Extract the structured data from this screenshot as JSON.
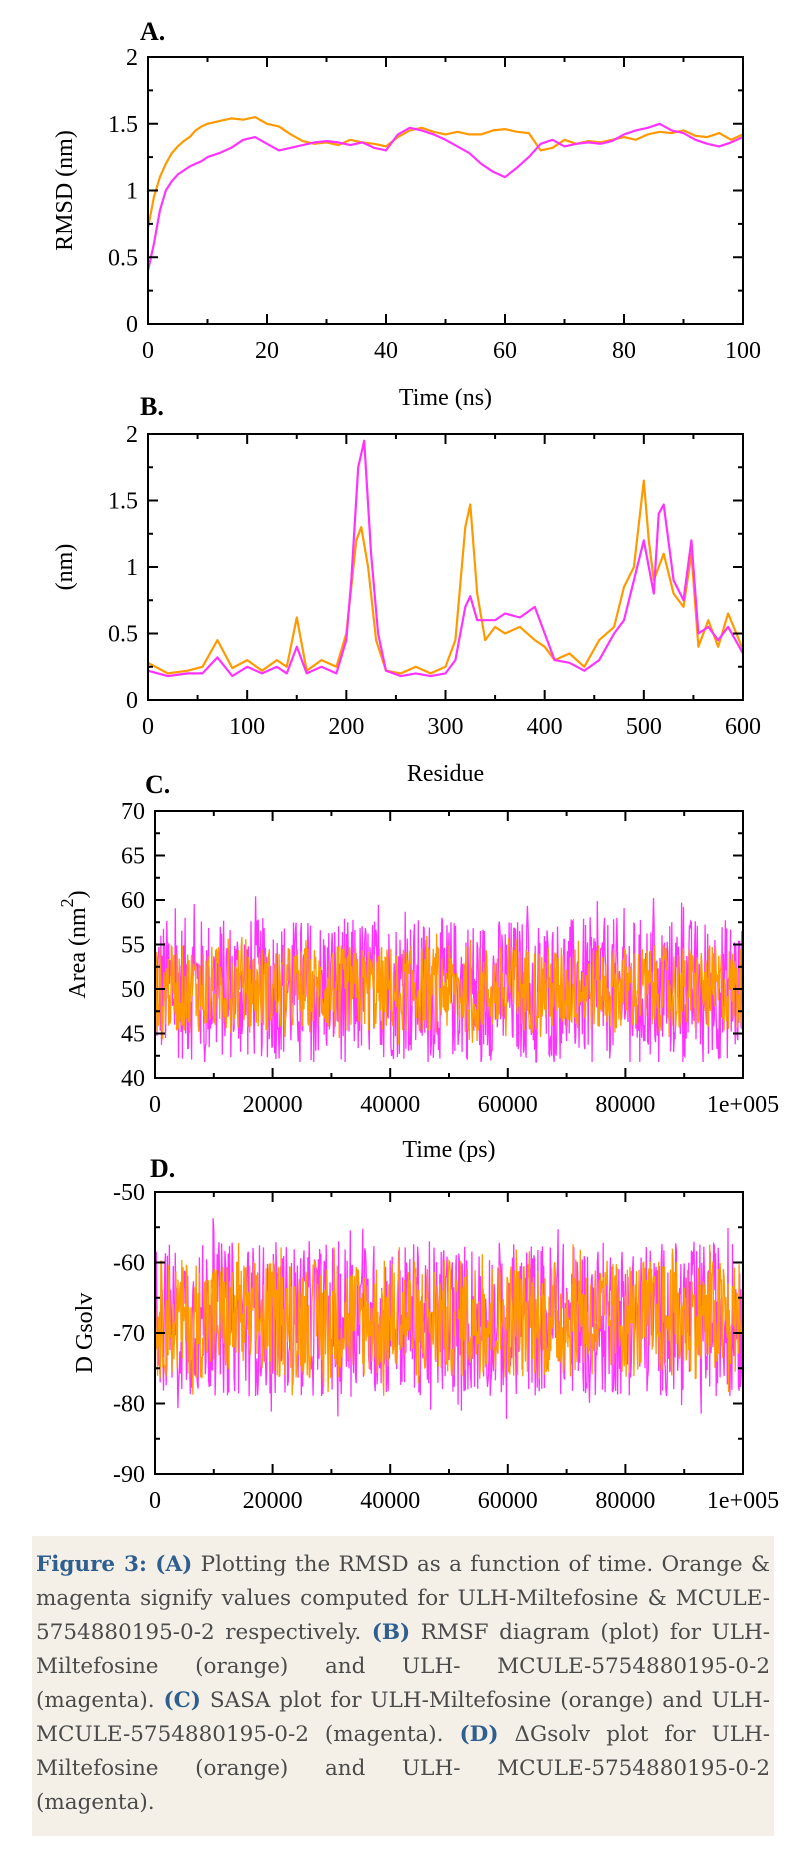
{
  "colors": {
    "orange": "#ff9900",
    "magenta": "#ff33ff",
    "axis": "#000000",
    "caption_bold": "#2e5f8e"
  },
  "chart_data": [
    {
      "panel": "A.",
      "type": "line",
      "xlabel": "Time (ns)",
      "ylabel": "RMSD (nm)",
      "xlim": [
        0,
        100
      ],
      "ylim": [
        0,
        2
      ],
      "xticks": [
        "0",
        "20",
        "40",
        "60",
        "80",
        "100"
      ],
      "yticks": [
        "0",
        "0.5",
        "1",
        "1.5",
        "2"
      ],
      "series": [
        {
          "color": "orange",
          "x": [
            0,
            1,
            2,
            3,
            4,
            5,
            6,
            7,
            8,
            9,
            10,
            12,
            14,
            16,
            18,
            20,
            22,
            24,
            26,
            28,
            30,
            32,
            34,
            36,
            38,
            40,
            42,
            44,
            46,
            48,
            50,
            52,
            54,
            56,
            58,
            60,
            62,
            64,
            66,
            68,
            70,
            72,
            74,
            76,
            78,
            80,
            82,
            84,
            86,
            88,
            90,
            92,
            94,
            96,
            98,
            100
          ],
          "y": [
            0.72,
            0.95,
            1.1,
            1.2,
            1.28,
            1.33,
            1.37,
            1.4,
            1.45,
            1.48,
            1.5,
            1.52,
            1.54,
            1.53,
            1.55,
            1.5,
            1.48,
            1.42,
            1.37,
            1.35,
            1.36,
            1.34,
            1.38,
            1.36,
            1.35,
            1.33,
            1.4,
            1.45,
            1.47,
            1.44,
            1.42,
            1.44,
            1.42,
            1.42,
            1.45,
            1.46,
            1.44,
            1.43,
            1.3,
            1.32,
            1.38,
            1.35,
            1.37,
            1.36,
            1.38,
            1.4,
            1.38,
            1.42,
            1.44,
            1.43,
            1.45,
            1.41,
            1.4,
            1.43,
            1.38,
            1.42
          ]
        },
        {
          "color": "magenta",
          "x": [
            0,
            1,
            2,
            3,
            4,
            5,
            6,
            7,
            8,
            9,
            10,
            12,
            14,
            16,
            18,
            20,
            22,
            24,
            26,
            28,
            30,
            32,
            34,
            36,
            38,
            40,
            42,
            44,
            46,
            48,
            50,
            52,
            54,
            56,
            58,
            60,
            62,
            64,
            66,
            68,
            70,
            72,
            74,
            76,
            78,
            80,
            82,
            84,
            86,
            88,
            90,
            92,
            94,
            96,
            98,
            100
          ],
          "y": [
            0.4,
            0.6,
            0.85,
            1.0,
            1.07,
            1.12,
            1.15,
            1.18,
            1.2,
            1.22,
            1.25,
            1.28,
            1.32,
            1.38,
            1.4,
            1.35,
            1.3,
            1.32,
            1.34,
            1.36,
            1.37,
            1.36,
            1.34,
            1.36,
            1.32,
            1.3,
            1.42,
            1.47,
            1.45,
            1.42,
            1.38,
            1.33,
            1.28,
            1.2,
            1.14,
            1.1,
            1.17,
            1.25,
            1.35,
            1.38,
            1.33,
            1.35,
            1.36,
            1.35,
            1.37,
            1.42,
            1.45,
            1.47,
            1.5,
            1.45,
            1.43,
            1.38,
            1.35,
            1.33,
            1.36,
            1.4
          ]
        }
      ]
    },
    {
      "panel": "B.",
      "type": "line",
      "xlabel": "Residue",
      "ylabel": "(nm)",
      "xlim": [
        0,
        600
      ],
      "ylim": [
        0,
        2
      ],
      "xticks": [
        "0",
        "100",
        "200",
        "300",
        "400",
        "500",
        "600"
      ],
      "yticks": [
        "0",
        "0.5",
        "1",
        "1.5",
        "2"
      ],
      "series": [
        {
          "color": "orange",
          "x": [
            0,
            20,
            40,
            55,
            70,
            85,
            100,
            115,
            130,
            140,
            150,
            160,
            175,
            190,
            200,
            210,
            215,
            222,
            230,
            240,
            255,
            270,
            285,
            300,
            310,
            320,
            325,
            332,
            340,
            350,
            360,
            375,
            390,
            400,
            410,
            425,
            440,
            455,
            470,
            480,
            490,
            500,
            505,
            510,
            520,
            530,
            540,
            548,
            555,
            565,
            575,
            585,
            600
          ],
          "y": [
            0.28,
            0.2,
            0.22,
            0.25,
            0.45,
            0.24,
            0.3,
            0.22,
            0.3,
            0.25,
            0.62,
            0.22,
            0.3,
            0.25,
            0.5,
            1.2,
            1.3,
            1.0,
            0.45,
            0.22,
            0.2,
            0.25,
            0.2,
            0.25,
            0.45,
            1.3,
            1.47,
            0.8,
            0.45,
            0.55,
            0.5,
            0.55,
            0.45,
            0.4,
            0.3,
            0.35,
            0.25,
            0.45,
            0.55,
            0.85,
            1.0,
            1.65,
            1.2,
            0.9,
            1.1,
            0.8,
            0.7,
            1.1,
            0.4,
            0.6,
            0.4,
            0.65,
            0.38
          ]
        },
        {
          "color": "magenta",
          "x": [
            0,
            20,
            40,
            55,
            70,
            85,
            100,
            115,
            130,
            140,
            150,
            160,
            175,
            190,
            200,
            205,
            212,
            218,
            225,
            232,
            240,
            255,
            270,
            285,
            300,
            310,
            320,
            325,
            332,
            340,
            350,
            360,
            375,
            390,
            400,
            410,
            425,
            440,
            455,
            470,
            480,
            490,
            500,
            505,
            510,
            515,
            520,
            530,
            540,
            548,
            555,
            565,
            575,
            585,
            600
          ],
          "y": [
            0.22,
            0.18,
            0.2,
            0.2,
            0.32,
            0.18,
            0.25,
            0.2,
            0.25,
            0.2,
            0.4,
            0.2,
            0.25,
            0.2,
            0.45,
            0.9,
            1.75,
            1.95,
            1.1,
            0.5,
            0.22,
            0.18,
            0.2,
            0.18,
            0.2,
            0.3,
            0.7,
            0.78,
            0.6,
            0.6,
            0.6,
            0.65,
            0.62,
            0.7,
            0.5,
            0.3,
            0.28,
            0.22,
            0.3,
            0.5,
            0.6,
            0.9,
            1.2,
            1.0,
            0.8,
            1.4,
            1.47,
            0.9,
            0.75,
            1.2,
            0.5,
            0.55,
            0.45,
            0.55,
            0.35
          ]
        }
      ]
    },
    {
      "panel": "C.",
      "type": "line",
      "xlabel": "Time (ps)",
      "ylabel": "Area (nm",
      "ylabel_superscript": "2",
      "ylabel_suffix": ")",
      "xlim": [
        0,
        100000
      ],
      "ylim": [
        40,
        70
      ],
      "xticks": [
        "0",
        "20000",
        "40000",
        "60000",
        "80000",
        "1e+005"
      ],
      "yticks": [
        "40",
        "45",
        "50",
        "55",
        "60",
        "65",
        "70"
      ],
      "series": [
        {
          "color": "magenta",
          "mean": 50,
          "spread": 9.5,
          "peak_max": 61.2,
          "peak_min": 41.8
        },
        {
          "color": "orange",
          "mean": 50,
          "spread": 5.8,
          "peak_max": 56.8,
          "peak_min": 42.5
        }
      ]
    },
    {
      "panel": "D.",
      "type": "line",
      "xlabel": "Time (ps)",
      "ylabel": "D Gsolv",
      "xlim": [
        0,
        100000
      ],
      "ylim": [
        -90,
        -50
      ],
      "xticks": [
        "0",
        "20000",
        "40000",
        "60000",
        "80000",
        "1e+005"
      ],
      "yticks": [
        "-90",
        "-80",
        "-70",
        "-60",
        "-50"
      ],
      "series": [
        {
          "color": "magenta",
          "mean": -68,
          "spread": 13,
          "peak_max": -53,
          "peak_min": -83
        },
        {
          "color": "orange",
          "mean": -68,
          "spread": 10,
          "peak_max": -55,
          "peak_min": -82
        }
      ]
    }
  ],
  "caption": {
    "label": "Figure 3:",
    "a_tag": "(A)",
    "a_text": " Plotting the RMSD as a function of time. Orange & magenta signify values computed for ULH-Miltefosine & MCULE-5754880195-0-2 respectively. ",
    "b_tag": "(B)",
    "b_text": " RMSF diagram (plot) for ULH-Miltefosine (orange) and ULH- MCULE-5754880195-0-2 (magenta). ",
    "c_tag": "(C)",
    "c_text": " SASA plot for ULH-Miltefosine (orange) and ULH-MCULE-5754880195-0-2 (magenta). ",
    "d_tag": "(D)",
    "d_text": " ΔGsolv plot for ULH-Miltefosine (orange) and ULH- MCULE-5754880195-0-2 (magenta)."
  }
}
